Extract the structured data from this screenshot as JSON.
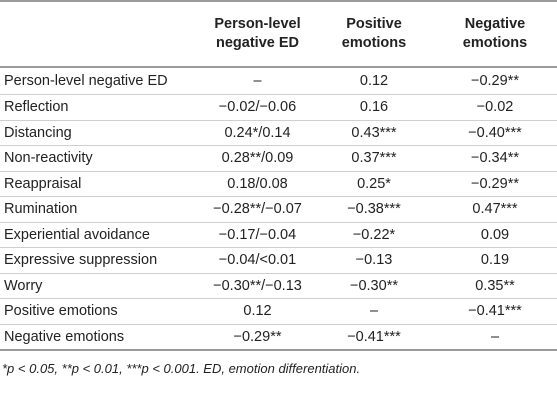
{
  "table": {
    "headers": [
      "",
      "Person-level\nnegative ED",
      "Positive\nemotions",
      "Negative\nemotions"
    ],
    "header_lines": [
      [],
      [
        "Person-level",
        "negative ED"
      ],
      [
        "Positive",
        "emotions"
      ],
      [
        "Negative",
        "emotions"
      ]
    ],
    "rows": [
      [
        "Person-level negative ED",
        "–",
        "0.12",
        "−0.29**"
      ],
      [
        "Reflection",
        "−0.02/−0.06",
        "0.16",
        "−0.02"
      ],
      [
        "Distancing",
        "0.24*/0.14",
        "0.43***",
        "−0.40***"
      ],
      [
        "Non-reactivity",
        "0.28**/0.09",
        "0.37***",
        "−0.34**"
      ],
      [
        "Reappraisal",
        "0.18/0.08",
        "0.25*",
        "−0.29**"
      ],
      [
        "Rumination",
        "−0.28**/−0.07",
        "−0.38***",
        "0.47***"
      ],
      [
        "Experiential avoidance",
        "−0.17/−0.04",
        "−0.22*",
        "0.09"
      ],
      [
        "Expressive suppression",
        "−0.04/<0.01",
        "−0.13",
        "0.19"
      ],
      [
        "Worry",
        "−0.30**/−0.13",
        "−0.30**",
        "0.35**"
      ],
      [
        "Positive emotions",
        "0.12",
        "–",
        "−0.41***"
      ],
      [
        "Negative emotions",
        "−0.29**",
        "−0.41***",
        "–"
      ]
    ]
  },
  "footnote": "*p < 0.05, **p < 0.01, ***p < 0.001. ED, emotion differentiation."
}
